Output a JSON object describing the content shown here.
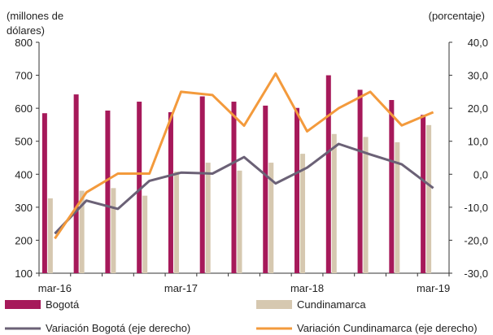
{
  "chart_data": {
    "type": "bar",
    "title": "",
    "left_axis": {
      "unit_label_line1": "(millones de",
      "unit_label_line2": "dólares)",
      "ylim": [
        100,
        800
      ],
      "ticks": [
        "100",
        "200",
        "300",
        "400",
        "500",
        "600",
        "700",
        "800"
      ]
    },
    "right_axis": {
      "unit_label": "(porcentaje)",
      "ylim": [
        -30,
        40
      ],
      "ticks": [
        "-30,0",
        "-20,0",
        "-10,0",
        "0,0",
        "10,0",
        "20,0",
        "30,0",
        "40,0"
      ]
    },
    "x_tick_labels": [
      {
        "label": "mar-16",
        "index": 0
      },
      {
        "label": "mar-17",
        "index": 4
      },
      {
        "label": "mar-18",
        "index": 8
      },
      {
        "label": "mar-19",
        "index": 12
      }
    ],
    "quarters": 13,
    "series": [
      {
        "name": "Bogotá",
        "type": "bar",
        "axis": "left",
        "color": "#a6195a",
        "values": [
          585,
          642,
          593,
          620,
          588,
          636,
          620,
          608,
          601,
          700,
          656,
          625,
          580
        ]
      },
      {
        "name": "Cundinamarca",
        "type": "bar",
        "axis": "left",
        "color": "#d6c8b0",
        "values": [
          327,
          350,
          358,
          335,
          408,
          435,
          411,
          435,
          462,
          522,
          513,
          497,
          549
        ]
      },
      {
        "name": "Variación Bogotá (eje derecho)",
        "type": "line",
        "axis": "right",
        "color": "#6b6176",
        "values": [
          -18.0,
          -8.0,
          -10.5,
          -2.0,
          0.5,
          0.2,
          5.2,
          -2.8,
          2.0,
          9.2,
          6.0,
          3.0,
          -4.2
        ]
      },
      {
        "name": "Variación Cundinamarca (eje derecho)",
        "type": "line",
        "axis": "right",
        "color": "#f39a3c",
        "values": [
          -19.5,
          -5.5,
          0.2,
          0.2,
          25.0,
          24.0,
          14.7,
          30.5,
          13.0,
          20.0,
          25.0,
          14.8,
          18.8
        ]
      }
    ],
    "legend": {
      "placement": "bottom"
    }
  }
}
